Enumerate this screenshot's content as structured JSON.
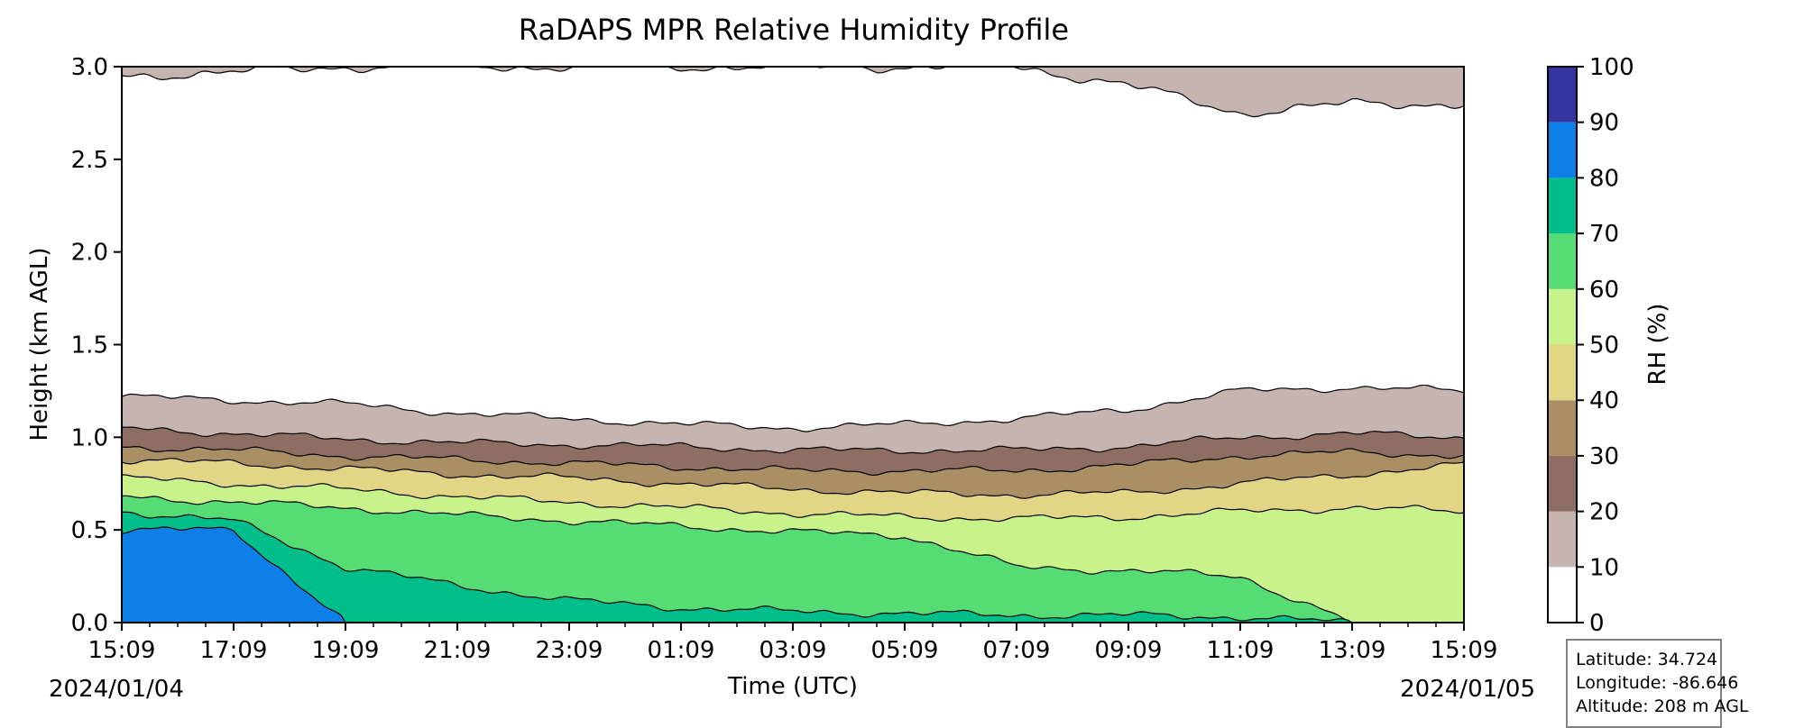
{
  "chart_data": {
    "type": "area",
    "title": "RaDAPS MPR Relative Humidity Profile",
    "xlabel": "Time (UTC)",
    "ylabel": "Height (km AGL)",
    "x_tick_labels": [
      "15:09",
      "17:09",
      "19:09",
      "21:09",
      "23:09",
      "01:09",
      "03:09",
      "05:09",
      "07:09",
      "09:09",
      "11:09",
      "13:09",
      "15:09"
    ],
    "x_range": [
      "2024/01/04 15:09",
      "2024/01/05 15:09"
    ],
    "start_date": "2024/01/04",
    "end_date": "2024/01/05",
    "ylim": [
      0,
      3.0
    ],
    "y_ticks": [
      "0.0",
      "0.5",
      "1.0",
      "1.5",
      "2.0",
      "2.5",
      "3.0"
    ],
    "colorbar": {
      "label": "RH (%)",
      "ticks": [
        "0",
        "10",
        "20",
        "30",
        "40",
        "50",
        "60",
        "70",
        "80",
        "90",
        "100"
      ],
      "levels": [
        {
          "range": [
            0,
            10
          ],
          "color": "#ffffff"
        },
        {
          "range": [
            10,
            20
          ],
          "color": "#c6b4b0"
        },
        {
          "range": [
            20,
            30
          ],
          "color": "#8e6d62"
        },
        {
          "range": [
            30,
            40
          ],
          "color": "#a98f63"
        },
        {
          "range": [
            40,
            50
          ],
          "color": "#e2d686"
        },
        {
          "range": [
            50,
            60
          ],
          "color": "#c8f28a"
        },
        {
          "range": [
            60,
            70
          ],
          "color": "#55dc75"
        },
        {
          "range": [
            70,
            80
          ],
          "color": "#00be8c"
        },
        {
          "range": [
            80,
            90
          ],
          "color": "#0f7fe8"
        },
        {
          "range": [
            90,
            100
          ],
          "color": "#3535a2"
        }
      ]
    },
    "series": [
      {
        "name": "10",
        "y": [
          1.22,
          1.2,
          1.18,
          1.13,
          1.1,
          1.07,
          1.05,
          1.07,
          1.1,
          1.15,
          1.25,
          1.27,
          1.25
        ]
      },
      {
        "name": "20",
        "y": [
          1.05,
          1.02,
          0.99,
          0.97,
          0.96,
          0.95,
          0.93,
          0.93,
          0.93,
          0.95,
          1.0,
          1.02,
          1.0
        ]
      },
      {
        "name": "30",
        "y": [
          0.95,
          0.93,
          0.9,
          0.88,
          0.86,
          0.84,
          0.82,
          0.82,
          0.82,
          0.85,
          0.9,
          0.92,
          0.9
        ]
      },
      {
        "name": "40",
        "y": [
          0.88,
          0.86,
          0.83,
          0.8,
          0.78,
          0.75,
          0.72,
          0.7,
          0.69,
          0.7,
          0.75,
          0.8,
          0.85
        ]
      },
      {
        "name": "50",
        "y": [
          0.78,
          0.75,
          0.72,
          0.68,
          0.65,
          0.62,
          0.59,
          0.57,
          0.56,
          0.57,
          0.6,
          0.62,
          0.6
        ]
      },
      {
        "name": "60",
        "y": [
          0.68,
          0.65,
          0.62,
          0.58,
          0.55,
          0.52,
          0.49,
          0.47,
          0.3,
          0.28,
          0.25,
          0,
          0
        ]
      },
      {
        "name": "70",
        "y": [
          0.6,
          0.55,
          0.3,
          0.2,
          0.12,
          0.08,
          0.06,
          0.05,
          0.04,
          0.04,
          0.03,
          0,
          0
        ]
      },
      {
        "name": "80",
        "y": [
          0.5,
          0.5,
          0,
          0,
          0,
          0,
          0,
          0,
          0,
          0,
          0,
          0,
          0
        ]
      }
    ],
    "upper_layer": {
      "name": "10",
      "y_bottom": [
        2.95,
        2.97,
        3.0,
        3.0,
        3.0,
        3.0,
        3.0,
        3.0,
        3.0,
        2.9,
        2.75,
        2.8,
        2.8
      ]
    }
  },
  "info": {
    "latitude": "Latitude: 34.724",
    "longitude": "Longitude: -86.646",
    "altitude": "Altitude: 208 m AGL"
  }
}
